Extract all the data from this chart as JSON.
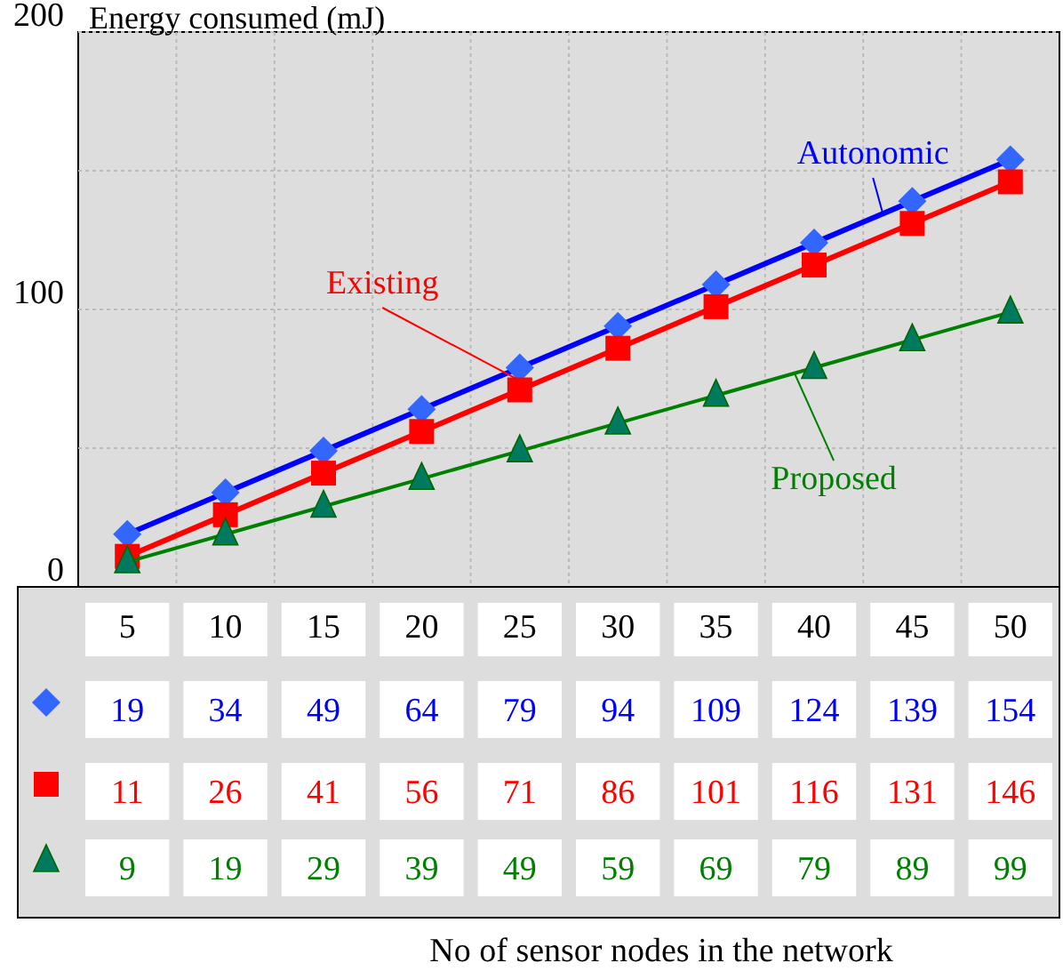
{
  "chart_data": {
    "type": "line",
    "ylabel": "Energy consumed (mJ)",
    "annotations": [
      "No of sensor nodes in the network"
    ],
    "categories": [
      "5",
      "10",
      "15",
      "20",
      "25",
      "30",
      "35",
      "40",
      "45",
      "50"
    ],
    "ylim": [
      0,
      200
    ],
    "yticks": [
      0,
      {
        "value": 50,
        "label": null
      },
      100,
      {
        "value": 150,
        "label": null
      },
      200
    ],
    "grid": true,
    "legend": false,
    "data_labels": true,
    "series": [
      {
        "name": "Autonomic",
        "color": "#0000ff",
        "marker": "diamond",
        "values": [
          19,
          34,
          49,
          64,
          79,
          94,
          109,
          124,
          139,
          154
        ]
      },
      {
        "name": "Existing",
        "color": "#ff0000",
        "marker": "square",
        "values": [
          11,
          26,
          41,
          56,
          71,
          86,
          101,
          116,
          131,
          146
        ]
      },
      {
        "name": "Proposed",
        "color": "#008000",
        "marker": "triangle",
        "values": [
          9,
          19,
          29,
          39,
          49,
          59,
          69,
          79,
          89,
          99
        ]
      }
    ]
  }
}
